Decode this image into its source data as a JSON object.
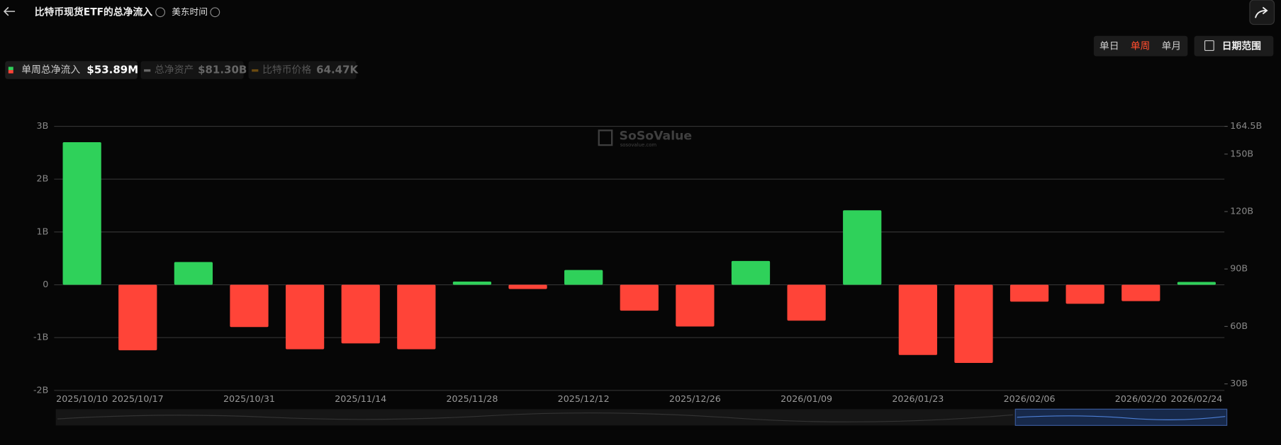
{
  "header": {
    "title": "比特币现货ETF的总净流入",
    "timezone": "美东时间"
  },
  "controls": {
    "periods": [
      "单日",
      "单周",
      "单月"
    ],
    "active_period": 1,
    "date_range": "日期范围"
  },
  "legend": [
    {
      "name": "单周总净流入",
      "value": "$53.89M"
    },
    {
      "name": "总净资产",
      "value": "$81.30B"
    },
    {
      "name": "比特币价格",
      "value": "64.47K"
    }
  ],
  "watermark": {
    "brand": "SoSoValue",
    "site": "sosovalue.com"
  },
  "chart_data": {
    "type": "bar",
    "categories": [
      "2025/10/10",
      "2025/10/17",
      null,
      "2025/10/31",
      null,
      "2025/11/14",
      null,
      "2025/11/28",
      null,
      "2025/12/12",
      null,
      "2025/12/26",
      null,
      "2026/01/09",
      null,
      "2026/01/23",
      null,
      "2026/02/06",
      null,
      "2026/02/20",
      "2026/02/24"
    ],
    "values": [
      2.7,
      -1.24,
      0.43,
      -0.8,
      -1.22,
      -1.11,
      -1.22,
      0.06,
      -0.08,
      0.28,
      -0.49,
      -0.79,
      0.45,
      -0.68,
      1.41,
      -1.33,
      -1.48,
      -0.32,
      -0.36,
      -0.31,
      0.05389
    ],
    "positive_color": "#2fd15a",
    "negative_color": "#ff4438",
    "ylim": [
      -2,
      3
    ],
    "yticks": [
      {
        "value": -2,
        "label": "-2B"
      },
      {
        "value": -1,
        "label": "-1B"
      },
      0,
      {
        "value": 1,
        "label": "1B"
      },
      {
        "value": 2,
        "label": "2B"
      },
      {
        "value": 3,
        "label": "3B"
      }
    ],
    "y2lim": [
      26.6,
      164.5
    ],
    "y2ticks": [
      {
        "value": 30,
        "label": "30B"
      },
      {
        "value": 60,
        "label": "60B"
      },
      {
        "value": 90,
        "label": "90B"
      },
      {
        "value": 120,
        "label": "120B"
      },
      {
        "value": 150,
        "label": "150B"
      },
      {
        "value": 164.5,
        "label": "164.5B"
      }
    ],
    "grid": true
  }
}
